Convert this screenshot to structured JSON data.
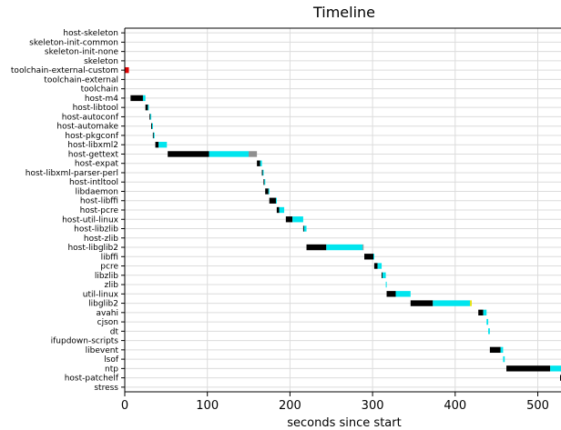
{
  "chart_data": {
    "type": "bar",
    "title": "Timeline",
    "xlabel": "seconds since start",
    "ylabel": "",
    "xlim": [
      0,
      530
    ],
    "xticks": [
      0,
      100,
      200,
      300,
      400,
      500
    ],
    "grid": true,
    "phase_colors": {
      "extract": "#e8e000",
      "patch": "#00a000",
      "configure": "#000000",
      "build": "#00e5ee",
      "install": "#8f8f8f",
      "error": "#dd0000"
    },
    "packages": [
      {
        "name": "host-skeleton",
        "segments": []
      },
      {
        "name": "skeleton-init-common",
        "segments": []
      },
      {
        "name": "skeleton-init-none",
        "segments": []
      },
      {
        "name": "skeleton",
        "segments": []
      },
      {
        "name": "toolchain-external-custom",
        "segments": [
          {
            "phase": "error",
            "start": 0,
            "end": 5
          }
        ]
      },
      {
        "name": "toolchain-external",
        "segments": []
      },
      {
        "name": "toolchain",
        "segments": []
      },
      {
        "name": "host-m4",
        "segments": [
          {
            "phase": "configure",
            "start": 7,
            "end": 22
          },
          {
            "phase": "build",
            "start": 22,
            "end": 25
          }
        ]
      },
      {
        "name": "host-libtool",
        "segments": [
          {
            "phase": "configure",
            "start": 25,
            "end": 28
          },
          {
            "phase": "build",
            "start": 28,
            "end": 29
          }
        ]
      },
      {
        "name": "host-autoconf",
        "segments": [
          {
            "phase": "configure",
            "start": 30,
            "end": 31
          },
          {
            "phase": "build",
            "start": 31,
            "end": 32
          }
        ]
      },
      {
        "name": "host-automake",
        "segments": [
          {
            "phase": "configure",
            "start": 32,
            "end": 33
          },
          {
            "phase": "build",
            "start": 33,
            "end": 34
          }
        ]
      },
      {
        "name": "host-pkgconf",
        "segments": [
          {
            "phase": "configure",
            "start": 34,
            "end": 35
          },
          {
            "phase": "build",
            "start": 35,
            "end": 36
          }
        ]
      },
      {
        "name": "host-libxml2",
        "segments": [
          {
            "phase": "configure",
            "start": 37,
            "end": 41
          },
          {
            "phase": "build",
            "start": 41,
            "end": 51
          }
        ]
      },
      {
        "name": "host-gettext",
        "segments": [
          {
            "phase": "configure",
            "start": 52,
            "end": 102
          },
          {
            "phase": "build",
            "start": 102,
            "end": 150
          },
          {
            "phase": "install",
            "start": 150,
            "end": 160
          }
        ]
      },
      {
        "name": "host-expat",
        "segments": [
          {
            "phase": "configure",
            "start": 160,
            "end": 164
          },
          {
            "phase": "build",
            "start": 164,
            "end": 166
          }
        ]
      },
      {
        "name": "host-libxml-parser-perl",
        "segments": [
          {
            "phase": "configure",
            "start": 166,
            "end": 167
          },
          {
            "phase": "build",
            "start": 167,
            "end": 168
          }
        ]
      },
      {
        "name": "host-intltool",
        "segments": [
          {
            "phase": "configure",
            "start": 168,
            "end": 169
          },
          {
            "phase": "build",
            "start": 169,
            "end": 170
          }
        ]
      },
      {
        "name": "libdaemon",
        "segments": [
          {
            "phase": "configure",
            "start": 170,
            "end": 174
          },
          {
            "phase": "build",
            "start": 174,
            "end": 175
          }
        ]
      },
      {
        "name": "host-libffi",
        "segments": [
          {
            "phase": "configure",
            "start": 175,
            "end": 183
          },
          {
            "phase": "build",
            "start": 183,
            "end": 184
          }
        ]
      },
      {
        "name": "host-pcre",
        "segments": [
          {
            "phase": "configure",
            "start": 184,
            "end": 187
          },
          {
            "phase": "build",
            "start": 187,
            "end": 193
          }
        ]
      },
      {
        "name": "host-util-linux",
        "segments": [
          {
            "phase": "configure",
            "start": 195,
            "end": 203
          },
          {
            "phase": "build",
            "start": 203,
            "end": 216
          }
        ]
      },
      {
        "name": "host-libzlib",
        "segments": [
          {
            "phase": "configure",
            "start": 216,
            "end": 217
          },
          {
            "phase": "build",
            "start": 217,
            "end": 220
          }
        ]
      },
      {
        "name": "host-zlib",
        "segments": []
      },
      {
        "name": "host-libglib2",
        "segments": [
          {
            "phase": "configure",
            "start": 220,
            "end": 244
          },
          {
            "phase": "build",
            "start": 244,
            "end": 288
          },
          {
            "phase": "install",
            "start": 288,
            "end": 289
          }
        ]
      },
      {
        "name": "libffi",
        "segments": [
          {
            "phase": "configure",
            "start": 290,
            "end": 301
          },
          {
            "phase": "build",
            "start": 301,
            "end": 302
          }
        ]
      },
      {
        "name": "pcre",
        "segments": [
          {
            "phase": "configure",
            "start": 302,
            "end": 306
          },
          {
            "phase": "build",
            "start": 306,
            "end": 311
          }
        ]
      },
      {
        "name": "libzlib",
        "segments": [
          {
            "phase": "configure",
            "start": 311,
            "end": 312
          },
          {
            "phase": "build",
            "start": 312,
            "end": 316
          }
        ]
      },
      {
        "name": "zlib",
        "segments": [
          {
            "phase": "build",
            "start": 316,
            "end": 317
          }
        ]
      },
      {
        "name": "util-linux",
        "segments": [
          {
            "phase": "configure",
            "start": 317,
            "end": 328
          },
          {
            "phase": "build",
            "start": 328,
            "end": 346
          }
        ]
      },
      {
        "name": "libglib2",
        "segments": [
          {
            "phase": "configure",
            "start": 346,
            "end": 373
          },
          {
            "phase": "build",
            "start": 373,
            "end": 418
          },
          {
            "phase": "extract",
            "start": 418,
            "end": 420
          }
        ]
      },
      {
        "name": "avahi",
        "segments": [
          {
            "phase": "configure",
            "start": 428,
            "end": 434
          },
          {
            "phase": "build",
            "start": 434,
            "end": 438
          }
        ]
      },
      {
        "name": "cjson",
        "segments": [
          {
            "phase": "build",
            "start": 438,
            "end": 440
          }
        ]
      },
      {
        "name": "dt",
        "segments": [
          {
            "phase": "build",
            "start": 440,
            "end": 442
          }
        ]
      },
      {
        "name": "ifupdown-scripts",
        "segments": []
      },
      {
        "name": "libevent",
        "segments": [
          {
            "phase": "configure",
            "start": 442,
            "end": 455
          },
          {
            "phase": "build",
            "start": 455,
            "end": 458
          }
        ]
      },
      {
        "name": "lsof",
        "segments": [
          {
            "phase": "build",
            "start": 458,
            "end": 460
          }
        ]
      },
      {
        "name": "ntp",
        "segments": [
          {
            "phase": "configure",
            "start": 462,
            "end": 515
          },
          {
            "phase": "build",
            "start": 515,
            "end": 530
          }
        ]
      },
      {
        "name": "host-patchelf",
        "segments": [
          {
            "phase": "configure",
            "start": 527,
            "end": 530
          }
        ]
      },
      {
        "name": "stress",
        "segments": []
      }
    ]
  }
}
